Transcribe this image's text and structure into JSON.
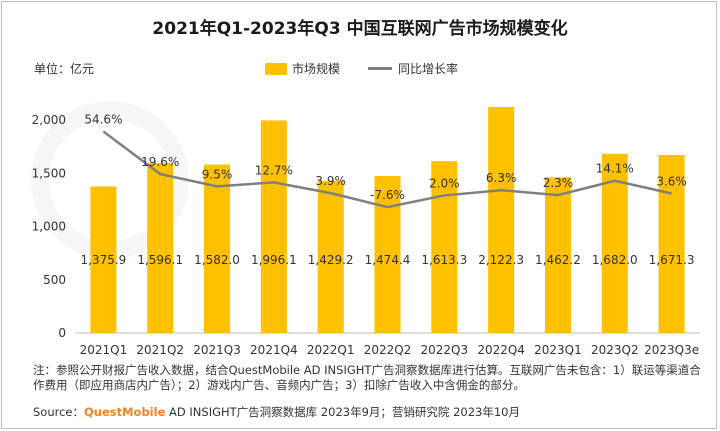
{
  "chart_data": {
    "type": "bar",
    "title": "2021年Q1-2023年Q3 中国互联网广告市场规模变化",
    "unit_label": "单位：亿元",
    "categories": [
      "2021Q1",
      "2021Q2",
      "2021Q3",
      "2021Q4",
      "2022Q1",
      "2022Q2",
      "2022Q3",
      "2022Q4",
      "2023Q1",
      "2023Q2",
      "2023Q3e"
    ],
    "series": [
      {
        "name": "市场规模",
        "type": "bar",
        "color": "#FFC000",
        "values": [
          1375.9,
          1596.1,
          1582.0,
          1996.1,
          1429.2,
          1474.4,
          1613.3,
          2122.3,
          1462.2,
          1682.0,
          1671.3
        ],
        "labels": [
          "1,375.9",
          "1,596.1",
          "1,582.0",
          "1,996.1",
          "1,429.2",
          "1,474.4",
          "1,613.3",
          "2,122.3",
          "1,462.2",
          "1,682.0",
          "1,671.3"
        ]
      },
      {
        "name": "同比增长率",
        "type": "line",
        "color": "#7f7f7f",
        "values": [
          54.6,
          19.6,
          9.5,
          12.7,
          3.9,
          -7.6,
          2.0,
          6.3,
          2.3,
          14.1,
          3.6
        ],
        "labels": [
          "54.6%",
          "19.6%",
          "9.5%",
          "12.7%",
          "3.9%",
          "-7.6%",
          "2.0%",
          "6.3%",
          "2.3%",
          "14.1%",
          "3.6%"
        ]
      }
    ],
    "ylim": [
      0,
      2000
    ],
    "yticks": [
      "0",
      "500",
      "1,000",
      "1,500",
      "2,000"
    ],
    "legend_position": "top"
  },
  "notes": "注：参照公开财报广告收入数据，结合QuestMobile AD INSIGHT广告洞察数据库进行估算。互联网广告未包含：1）联运等渠道合作费用（即应用商店内广告）；2）游戏内广告、音频内广告；3）扣除广告收入中含佣金的部分。",
  "source": {
    "prefix": "Source：",
    "brand": "QuestMobile",
    "rest": " AD INSIGHT广告洞察数据库 2023年9月；营销研究院 2023年10月"
  }
}
